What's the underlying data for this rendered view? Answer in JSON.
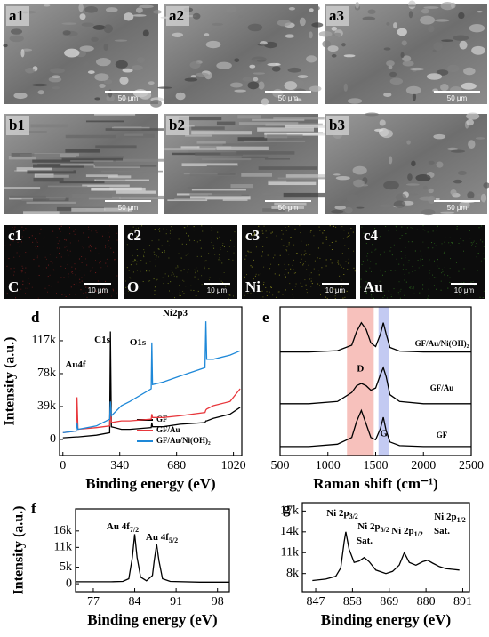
{
  "images": [
    {
      "label": "a1",
      "scale": "50 μm"
    },
    {
      "label": "a2",
      "scale": "50 μm"
    },
    {
      "label": "a3",
      "scale": "50 μm"
    },
    {
      "label": "b1",
      "scale": "50 μm"
    },
    {
      "label": "b2",
      "scale": "50 μm"
    },
    {
      "label": "b3",
      "scale": "50 μm"
    }
  ],
  "maps": [
    {
      "label": "c1",
      "element": "C",
      "scale": "10 μm",
      "color": "#7a1e1e"
    },
    {
      "label": "c2",
      "element": "O",
      "scale": "10 μm",
      "color": "#6f7a1e"
    },
    {
      "label": "c3",
      "element": "Ni",
      "scale": "10 μm",
      "color": "#8a8a1e"
    },
    {
      "label": "c4",
      "element": "Au",
      "scale": "10 μm",
      "color": "#2e6a1e"
    }
  ],
  "chart_data": [
    {
      "type": "line",
      "panel": "d",
      "xlabel": "Binding energy (eV)",
      "ylabel": "Intensity (a.u.)",
      "xlim": [
        -20,
        1070
      ],
      "xticks": [
        0,
        340,
        680,
        1020
      ],
      "ylim": [
        -19000,
        157000
      ],
      "yticks": [
        0,
        {
          "value": 39000,
          "label": "39k"
        },
        {
          "value": 78000,
          "label": "78k"
        },
        {
          "value": 117000,
          "label": "117k"
        }
      ],
      "x": [
        0,
        80,
        84,
        90,
        200,
        280,
        284,
        290,
        350,
        400,
        528,
        532,
        536,
        600,
        700,
        850,
        855,
        860,
        900,
        1000,
        1060
      ],
      "series": [
        {
          "name": "GF",
          "color": "#000000",
          "values": [
            2000,
            3000,
            3000,
            3000,
            5000,
            8000,
            128000,
            15000,
            12000,
            12000,
            14000,
            20000,
            15000,
            15000,
            18000,
            20000,
            22000,
            22000,
            25000,
            30000,
            38000
          ]
        },
        {
          "name": "GF/Au",
          "color": "#e8383d",
          "values": [
            8000,
            10000,
            50000,
            12000,
            14000,
            16000,
            40000,
            20000,
            22000,
            22000,
            24000,
            30000,
            26000,
            26000,
            28000,
            32000,
            35000,
            36000,
            40000,
            45000,
            60000
          ]
        },
        {
          "name": "GF/Au/Ni(OH)₂",
          "color": "#1e88d8",
          "values": [
            8000,
            10000,
            20000,
            12000,
            16000,
            24000,
            45000,
            28000,
            40000,
            45000,
            60000,
            115000,
            65000,
            68000,
            75000,
            85000,
            140000,
            95000,
            95000,
            100000,
            105000
          ]
        }
      ],
      "annotations": [
        {
          "text": "Au4f"
        },
        {
          "text": "C1s"
        },
        {
          "text": "O1s"
        },
        {
          "text": "Ni2p3"
        }
      ],
      "legend": "lower right"
    },
    {
      "type": "line",
      "panel": "e",
      "xlabel": "Raman shift (cm⁻¹)",
      "xlim": [
        500,
        2500
      ],
      "xticks": [
        500,
        1000,
        1500,
        2000,
        2500
      ],
      "ylim": [
        0,
        3.3
      ],
      "x": [
        500,
        800,
        1100,
        1250,
        1300,
        1350,
        1400,
        1450,
        1500,
        1550,
        1580,
        1610,
        1650,
        1750,
        2000,
        2300,
        2500
      ],
      "series": [
        {
          "name": "GF",
          "color": "#000000",
          "values": [
            0.2,
            0.2,
            0.25,
            0.4,
            0.75,
            1.0,
            0.7,
            0.4,
            0.35,
            0.6,
            0.85,
            0.55,
            0.3,
            0.22,
            0.2,
            0.2,
            0.2
          ]
        },
        {
          "name": "GF/Au",
          "color": "#000000",
          "values": [
            1.15,
            1.15,
            1.2,
            1.4,
            1.55,
            1.6,
            1.55,
            1.45,
            1.5,
            1.8,
            1.95,
            1.75,
            1.35,
            1.2,
            1.15,
            1.15,
            1.15
          ]
        },
        {
          "name": "GF/Au/Ni(OH)₂",
          "color": "#000000",
          "values": [
            2.3,
            2.3,
            2.33,
            2.45,
            2.75,
            2.95,
            2.8,
            2.5,
            2.42,
            2.7,
            2.95,
            2.7,
            2.4,
            2.32,
            2.3,
            2.3,
            2.3
          ]
        }
      ],
      "bands": [
        {
          "label": "D",
          "range": [
            1200,
            1480
          ],
          "color": "#f4a6a0"
        },
        {
          "label": "G",
          "range": [
            1530,
            1640
          ],
          "color": "#a9b4ec"
        }
      ]
    },
    {
      "type": "line",
      "panel": "f",
      "xlabel": "Binding energy (eV)",
      "ylabel": "Intensity (a.u.)",
      "xlim": [
        74,
        100
      ],
      "xticks": [
        77,
        84,
        91,
        98
      ],
      "ylim": [
        -2400,
        22700
      ],
      "yticks": [
        0,
        {
          "value": 5000,
          "label": "5k"
        },
        {
          "value": 11000,
          "label": "11k"
        },
        {
          "value": 16000,
          "label": "16k"
        }
      ],
      "x": [
        74,
        80,
        82,
        83,
        83.6,
        84,
        84.4,
        85,
        86,
        87,
        87.3,
        87.7,
        88.1,
        88.7,
        90,
        95,
        100
      ],
      "series": [
        {
          "name": "Au 4f",
          "color": "#000000",
          "values": [
            600,
            600,
            700,
            1500,
            8000,
            15000,
            8000,
            2000,
            900,
            2500,
            7000,
            12000,
            7000,
            1500,
            700,
            500,
            500
          ]
        }
      ],
      "annotations": [
        {
          "text": "Au 4f",
          "sub": "7/2"
        },
        {
          "text": "Au 4f",
          "sub": "5/2"
        }
      ]
    },
    {
      "type": "line",
      "panel": "g",
      "xlabel": "Binding energy (eV)",
      "xlim": [
        843,
        893
      ],
      "xticks": [
        847,
        858,
        869,
        880,
        891
      ],
      "ylim": [
        5400,
        18200
      ],
      "yticks": [
        {
          "value": 8000,
          "label": "8k"
        },
        {
          "value": 11000,
          "label": "11k"
        },
        {
          "value": 14000,
          "label": "14k"
        },
        {
          "value": 17000,
          "label": "17k"
        }
      ],
      "x": [
        846,
        850,
        853,
        854.5,
        855.5,
        856,
        857,
        858.5,
        860,
        861.5,
        863,
        865,
        868,
        870,
        872,
        873.5,
        875,
        877,
        879,
        880.5,
        882,
        884,
        886,
        888,
        890
      ],
      "series": [
        {
          "name": "Ni 2p",
          "color": "#000000",
          "values": [
            7000,
            7200,
            7600,
            8800,
            12500,
            14000,
            11500,
            9600,
            9800,
            10300,
            9700,
            8500,
            8000,
            8300,
            9200,
            11000,
            9600,
            9200,
            9700,
            9900,
            9500,
            9000,
            8700,
            8600,
            8500
          ]
        }
      ],
      "annotations": [
        {
          "text": "Ni 2p",
          "sub": "3/2"
        },
        {
          "text": "Ni 2p",
          "sub": "3/2"
        },
        {
          "text": "Sat."
        },
        {
          "text": "Ni 2p",
          "sub": "1/2"
        },
        {
          "text": "Ni 2p",
          "sub": "1/2"
        },
        {
          "text": "Sat."
        }
      ]
    }
  ]
}
